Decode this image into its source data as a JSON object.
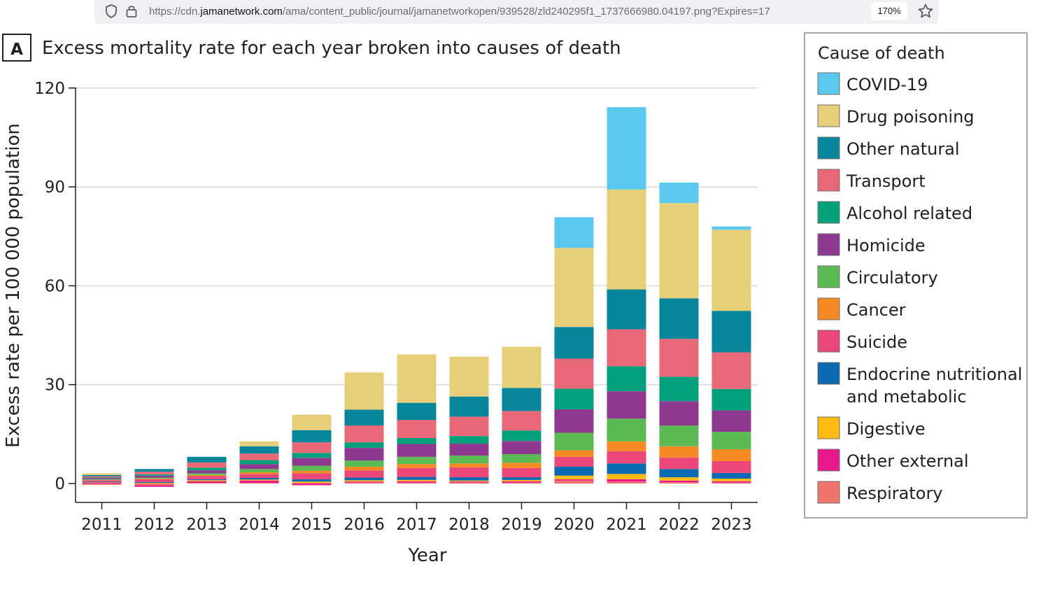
{
  "browser": {
    "url_prefix": "https://cdn.",
    "url_host": "jamanetwork.com",
    "url_path": "/ama/content_public/journal/jamanetworkopen/939528/zld240295f1_1737666980.04197.png?Expires=17",
    "zoom_label": "170%"
  },
  "chart_data": {
    "type": "bar",
    "stacked": true,
    "panel_label": "A",
    "title": "Excess mortality rate for each year broken into causes of death",
    "xlabel": "Year",
    "ylabel": "Excess rate per 100 000 population",
    "ylim": [
      -6,
      120
    ],
    "yticks": [
      0,
      30,
      60,
      90,
      120
    ],
    "grid": true,
    "legend_position": "right",
    "legend_title": "Cause of death",
    "categories": [
      "2011",
      "2012",
      "2013",
      "2014",
      "2015",
      "2016",
      "2017",
      "2018",
      "2019",
      "2020",
      "2021",
      "2022",
      "2023"
    ],
    "stack_order_bottom_to_top": [
      "Respiratory",
      "Other external",
      "Digestive",
      "Endocrine nutritional and metabolic",
      "Suicide",
      "Cancer",
      "Circulatory",
      "Homicide",
      "Alcohol related",
      "Transport",
      "Other natural",
      "Drug poisoning",
      "COVID-19"
    ],
    "series": [
      {
        "name": "COVID-19",
        "color": "#5bc8ef",
        "values": [
          0,
          0,
          0,
          0,
          0,
          0,
          0,
          0,
          0,
          9.3,
          25,
          6.2,
          1
        ]
      },
      {
        "name": "Drug poisoning",
        "color": "#e6cf78",
        "values": [
          0.5,
          0,
          0,
          1.5,
          4.7,
          11.3,
          14.7,
          12.1,
          12.5,
          24,
          30.3,
          28.9,
          24.6
        ]
      },
      {
        "name": "Other natural",
        "color": "#05869a",
        "values": [
          0.4,
          0.8,
          1.7,
          2.2,
          3.7,
          4.8,
          5.2,
          6.1,
          7,
          9.6,
          12.1,
          12.3,
          12.6
        ]
      },
      {
        "name": "Transport",
        "color": "#e96878",
        "values": [
          0.4,
          0.8,
          1.6,
          2,
          3.2,
          5.1,
          5.5,
          5.9,
          5.9,
          9.1,
          11.2,
          11.5,
          11.1
        ]
      },
      {
        "name": "Alcohol related",
        "color": "#03a17b",
        "values": [
          0.2,
          0.4,
          0.8,
          1.2,
          1.5,
          1.7,
          1.8,
          2.3,
          3.2,
          6.3,
          7.6,
          7.4,
          6.5
        ]
      },
      {
        "name": "Homicide",
        "color": "#8f3892",
        "values": [
          0.3,
          0.6,
          0.9,
          1.5,
          2.4,
          3.8,
          3.9,
          3.6,
          4,
          7.1,
          8.3,
          7.4,
          6.5
        ]
      },
      {
        "name": "Circulatory",
        "color": "#5bba53",
        "values": [
          0.2,
          0.3,
          0.5,
          1,
          1.5,
          1.9,
          2.2,
          2.4,
          2.6,
          5.3,
          6.9,
          6.3,
          5.3
        ]
      },
      {
        "name": "Cancer",
        "color": "#f58a25",
        "values": [
          0.1,
          0.2,
          0.3,
          0.5,
          0.8,
          1.1,
          1.2,
          1.2,
          1.6,
          2,
          3,
          3.4,
          3.6
        ]
      },
      {
        "name": "Suicide",
        "color": "#eb4778",
        "values": [
          0.4,
          0.8,
          1,
          1.2,
          1.8,
          2.2,
          2.7,
          3,
          2.8,
          3,
          3.7,
          3.5,
          3.6
        ]
      },
      {
        "name": "Endocrine nutritional and metabolic",
        "color": "#0c6ab0",
        "values": [
          0.2,
          0.3,
          0.3,
          0.5,
          0.7,
          0.8,
          0.9,
          1,
          0.8,
          2.7,
          3.2,
          2.5,
          1.7
        ]
      },
      {
        "name": "Digestive",
        "color": "#fdbb12",
        "values": [
          0.1,
          0.2,
          0.3,
          0.3,
          0.4,
          0.4,
          0.4,
          0.3,
          0.4,
          1.1,
          1.6,
          1,
          0.8
        ]
      },
      {
        "name": "Other external",
        "color": "#e9188c",
        "values": [
          0.3,
          -0.5,
          0.5,
          0.7,
          -0.5,
          0.3,
          0.4,
          0.3,
          0.4,
          0.4,
          0.7,
          0.5,
          0.4
        ]
      },
      {
        "name": "Respiratory",
        "color": "#f0746c",
        "values": [
          -0.4,
          -0.5,
          0.2,
          0.2,
          0.2,
          0.3,
          0.3,
          0.3,
          0.3,
          0.9,
          0.6,
          0.4,
          0.3
        ]
      }
    ],
    "legend": [
      {
        "lines": [
          "COVID-19"
        ],
        "color": "#5bc8ef"
      },
      {
        "lines": [
          "Drug poisoning"
        ],
        "color": "#e6cf78"
      },
      {
        "lines": [
          "Other natural"
        ],
        "color": "#05869a"
      },
      {
        "lines": [
          "Transport"
        ],
        "color": "#e96878"
      },
      {
        "lines": [
          "Alcohol related"
        ],
        "color": "#03a17b"
      },
      {
        "lines": [
          "Homicide"
        ],
        "color": "#8f3892"
      },
      {
        "lines": [
          "Circulatory"
        ],
        "color": "#5bba53"
      },
      {
        "lines": [
          "Cancer"
        ],
        "color": "#f58a25"
      },
      {
        "lines": [
          "Suicide"
        ],
        "color": "#eb4778"
      },
      {
        "lines": [
          "Endocrine nutritional",
          "and metabolic"
        ],
        "color": "#0c6ab0"
      },
      {
        "lines": [
          "Digestive"
        ],
        "color": "#fdbb12"
      },
      {
        "lines": [
          "Other external"
        ],
        "color": "#e9188c"
      },
      {
        "lines": [
          "Respiratory"
        ],
        "color": "#f0746c"
      }
    ]
  }
}
